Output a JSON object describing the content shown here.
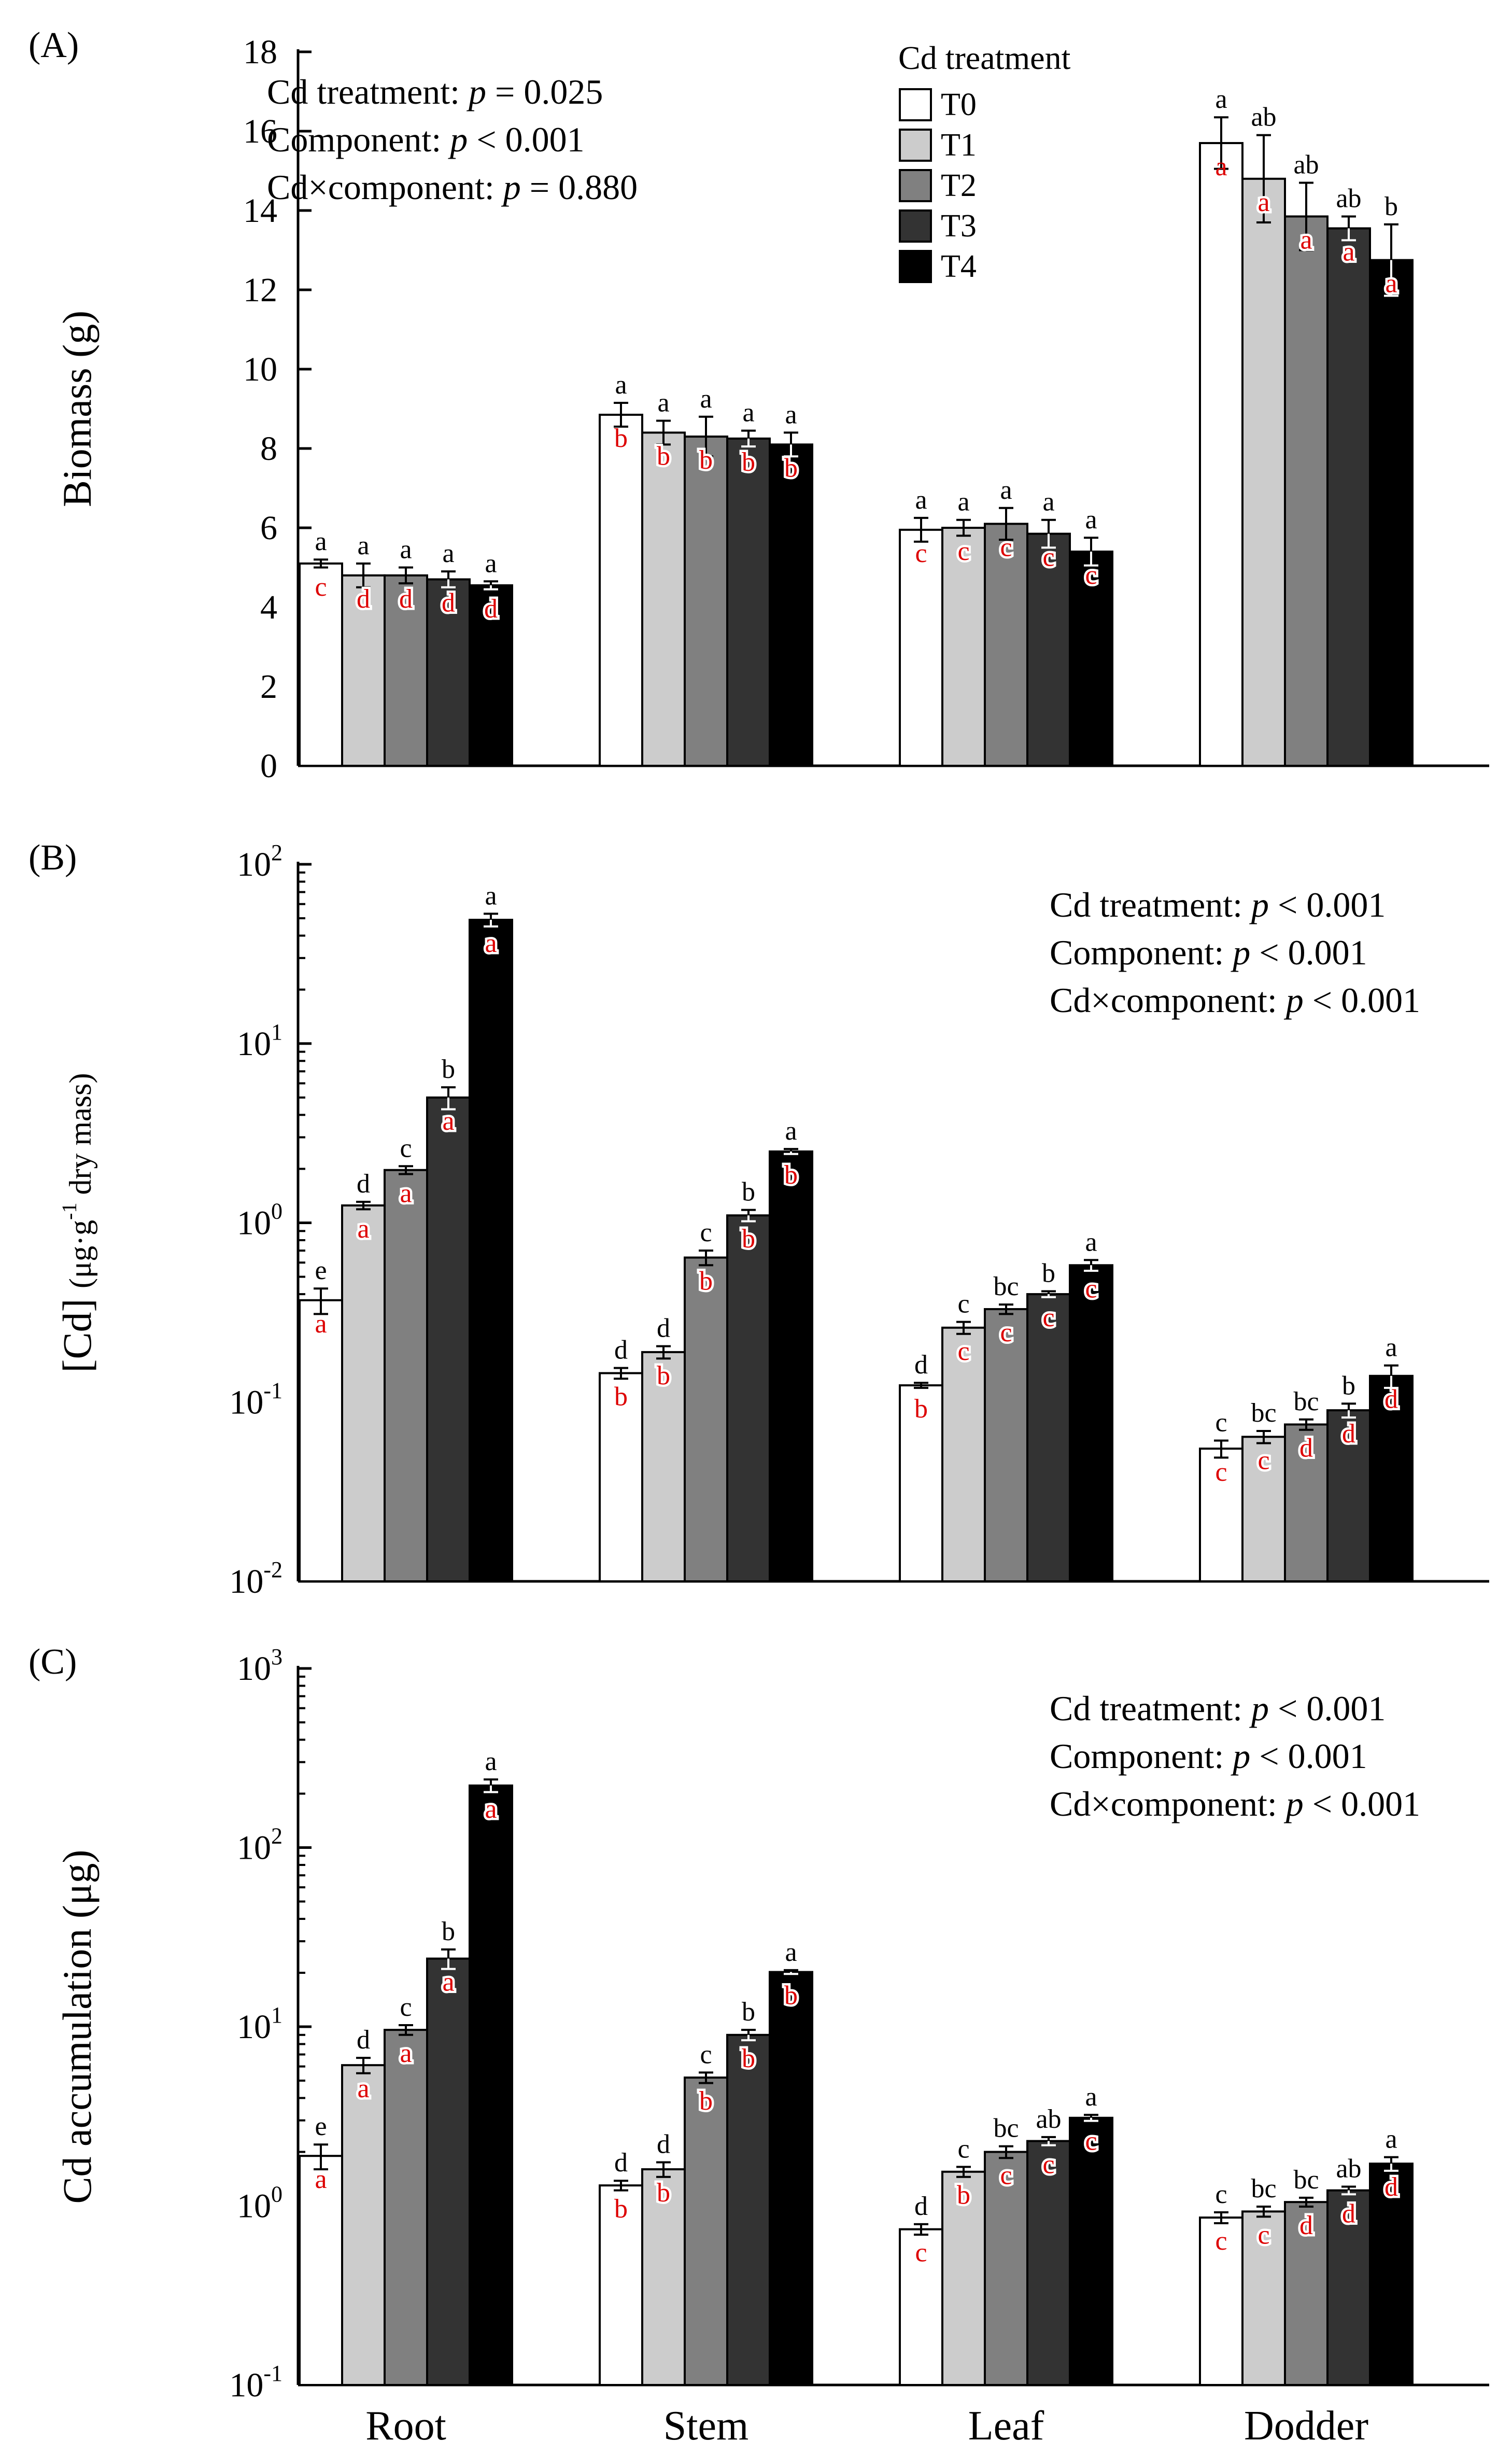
{
  "legend": {
    "title": "Cd treatment",
    "entries": [
      "T0",
      "T1",
      "T2",
      "T3",
      "T4"
    ],
    "colors": [
      "#ffffff",
      "#cccccc",
      "#808080",
      "#333333",
      "#000000"
    ]
  },
  "letter_colors": {
    "between_treatment": "#000000",
    "between_component": "#dd0000"
  },
  "chart_data": [
    {
      "id": "A",
      "panel_label": "(A)",
      "type": "bar",
      "scale": "linear",
      "ylim": [
        0,
        18
      ],
      "yticks": [
        0,
        2,
        4,
        6,
        8,
        10,
        12,
        14,
        16,
        18
      ],
      "ytick_labels": [
        "0",
        "2",
        "4",
        "6",
        "8",
        "10",
        "12",
        "14",
        "16",
        "18"
      ],
      "ylabel": "Biomass (g)",
      "xlabel": "",
      "categories": [
        "Root",
        "Stem",
        "Leaf",
        "Dodder"
      ],
      "stats": [
        {
          "label": "Cd treatment: ",
          "p": "p",
          "value": " = 0.025"
        },
        {
          "label": "Component: ",
          "p": "p",
          "value": " < 0.001"
        },
        {
          "label": "Cd×component: ",
          "p": "p",
          "value": " = 0.880"
        }
      ],
      "series": [
        {
          "name": "T0",
          "values": [
            5.1,
            8.85,
            5.95,
            15.7
          ],
          "errors": [
            0.1,
            0.3,
            0.3,
            0.65
          ],
          "letters_top": [
            "a",
            "a",
            "a",
            "a"
          ],
          "letters_bar": [
            "c",
            "b",
            "c",
            "a"
          ]
        },
        {
          "name": "T1",
          "values": [
            4.8,
            8.4,
            6.0,
            14.8
          ],
          "errors": [
            0.3,
            0.3,
            0.2,
            1.1
          ],
          "letters_top": [
            "a",
            "a",
            "a",
            "ab"
          ],
          "letters_bar": [
            "d",
            "b",
            "c",
            "a"
          ]
        },
        {
          "name": "T2",
          "values": [
            4.8,
            8.3,
            6.1,
            13.85
          ],
          "errors": [
            0.2,
            0.5,
            0.4,
            0.85
          ],
          "letters_top": [
            "a",
            "a",
            "a",
            "ab"
          ],
          "letters_bar": [
            "d",
            "b",
            "c",
            "a"
          ]
        },
        {
          "name": "T3",
          "values": [
            4.7,
            8.25,
            5.85,
            13.55
          ],
          "errors": [
            0.2,
            0.2,
            0.35,
            0.3
          ],
          "letters_top": [
            "a",
            "a",
            "a",
            "ab"
          ],
          "letters_bar": [
            "d",
            "b",
            "c",
            "a"
          ]
        },
        {
          "name": "T4",
          "values": [
            4.55,
            8.1,
            5.4,
            12.75
          ],
          "errors": [
            0.1,
            0.3,
            0.35,
            0.9
          ],
          "letters_top": [
            "a",
            "a",
            "a",
            "b"
          ],
          "letters_bar": [
            "d",
            "b",
            "c",
            "a"
          ]
        }
      ]
    },
    {
      "id": "B",
      "panel_label": "(B)",
      "type": "bar",
      "scale": "log",
      "ylim": [
        0.01,
        100
      ],
      "yticks": [
        0.01,
        0.1,
        1,
        10,
        100
      ],
      "ytick_labels": [
        [
          "10",
          "-2"
        ],
        [
          "10",
          "-1"
        ],
        [
          "10",
          "0"
        ],
        [
          "10",
          "1"
        ],
        [
          "10",
          "2"
        ]
      ],
      "ylabel": {
        "main": "[Cd] ",
        "unit": "(μg·g",
        "sup": "-1",
        "rest": " dry mass)"
      },
      "xlabel": "",
      "categories": [
        "Root",
        "Stem",
        "Leaf",
        "Dodder"
      ],
      "stats": [
        {
          "label": "Cd treatment: ",
          "p": "p",
          "value": " < 0.001"
        },
        {
          "label": "Component: ",
          "p": "p",
          "value": " < 0.001"
        },
        {
          "label": "Cd×component: ",
          "p": "p",
          "value": " < 0.001"
        }
      ],
      "series": [
        {
          "name": "T0",
          "values": [
            0.37,
            0.145,
            0.124,
            0.055
          ],
          "errors": [
            0.06,
            0.01,
            0.004,
            0.006
          ],
          "letters_top": [
            "e",
            "d",
            "d",
            "c"
          ],
          "letters_bar": [
            "a",
            "b",
            "b",
            "c"
          ]
        },
        {
          "name": "T1",
          "values": [
            1.25,
            0.19,
            0.26,
            0.064
          ],
          "errors": [
            0.06,
            0.015,
            0.02,
            0.005
          ],
          "letters_top": [
            "d",
            "d",
            "c",
            "bc"
          ],
          "letters_bar": [
            "a",
            "b",
            "c",
            "c"
          ]
        },
        {
          "name": "T2",
          "values": [
            1.97,
            0.64,
            0.33,
            0.075
          ],
          "errors": [
            0.1,
            0.06,
            0.02,
            0.005
          ],
          "letters_top": [
            "c",
            "c",
            "bc",
            "bc"
          ],
          "letters_bar": [
            "a",
            "b",
            "c",
            "d"
          ]
        },
        {
          "name": "T3",
          "values": [
            5.0,
            1.1,
            0.4,
            0.09
          ],
          "errors": [
            0.7,
            0.08,
            0.015,
            0.008
          ],
          "letters_top": [
            "b",
            "b",
            "b",
            "b"
          ],
          "letters_bar": [
            "a",
            "b",
            "c",
            "d"
          ]
        },
        {
          "name": "T4",
          "values": [
            49,
            2.5,
            0.58,
            0.14
          ],
          "errors": [
            4,
            0.08,
            0.04,
            0.02
          ],
          "letters_top": [
            "a",
            "a",
            "a",
            "a"
          ],
          "letters_bar": [
            "a",
            "b",
            "c",
            "d"
          ]
        }
      ]
    },
    {
      "id": "C",
      "panel_label": "(C)",
      "type": "bar",
      "scale": "log",
      "ylim": [
        0.1,
        1000
      ],
      "yticks": [
        0.1,
        1,
        10,
        100,
        1000
      ],
      "ytick_labels": [
        [
          "10",
          "-1"
        ],
        [
          "10",
          "0"
        ],
        [
          "10",
          "1"
        ],
        [
          "10",
          "2"
        ],
        [
          "10",
          "3"
        ]
      ],
      "ylabel": "Cd accumulation (μg)",
      "xlabel": "",
      "categories": [
        "Root",
        "Stem",
        "Leaf",
        "Dodder"
      ],
      "stats": [
        {
          "label": "Cd treatment: ",
          "p": "p",
          "value": " < 0.001"
        },
        {
          "label": "Component: ",
          "p": "p",
          "value": " < 0.001"
        },
        {
          "label": "Cd×component: ",
          "p": "p",
          "value": " < 0.001"
        }
      ],
      "series": [
        {
          "name": "T0",
          "values": [
            1.9,
            1.3,
            0.74,
            0.86
          ],
          "errors": [
            0.3,
            0.08,
            0.05,
            0.06
          ],
          "letters_top": [
            "e",
            "d",
            "d",
            "c"
          ],
          "letters_bar": [
            "a",
            "b",
            "c",
            "c"
          ]
        },
        {
          "name": "T1",
          "values": [
            6.1,
            1.6,
            1.55,
            0.93
          ],
          "errors": [
            0.6,
            0.15,
            0.1,
            0.06
          ],
          "letters_top": [
            "d",
            "d",
            "c",
            "bc"
          ],
          "letters_bar": [
            "a",
            "b",
            "b",
            "c"
          ]
        },
        {
          "name": "T2",
          "values": [
            9.6,
            5.2,
            2.0,
            1.05
          ],
          "errors": [
            0.6,
            0.35,
            0.15,
            0.06
          ],
          "letters_top": [
            "c",
            "c",
            "bc",
            "bc"
          ],
          "letters_bar": [
            "a",
            "b",
            "c",
            "d"
          ]
        },
        {
          "name": "T3",
          "values": [
            24,
            9.0,
            2.3,
            1.22
          ],
          "errors": [
            3,
            0.6,
            0.12,
            0.06
          ],
          "letters_top": [
            "b",
            "b",
            "ab",
            "ab"
          ],
          "letters_bar": [
            "a",
            "b",
            "c",
            "d"
          ]
        },
        {
          "name": "T4",
          "values": [
            222,
            20.2,
            3.1,
            1.72
          ],
          "errors": [
            18,
            0.5,
            0.12,
            0.15
          ],
          "letters_top": [
            "a",
            "a",
            "a",
            "a"
          ],
          "letters_bar": [
            "a",
            "b",
            "c",
            "d"
          ]
        }
      ]
    }
  ]
}
